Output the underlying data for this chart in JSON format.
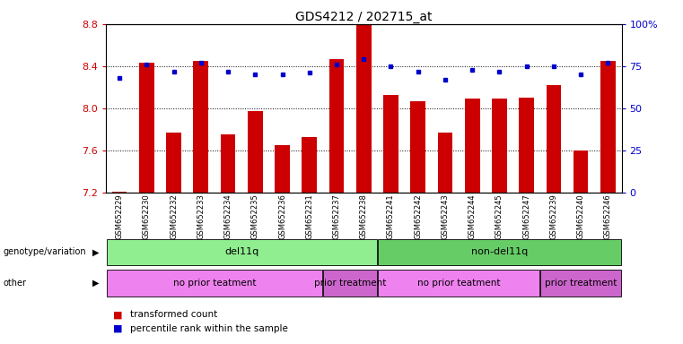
{
  "title": "GDS4212 / 202715_at",
  "samples": [
    "GSM652229",
    "GSM652230",
    "GSM652232",
    "GSM652233",
    "GSM652234",
    "GSM652235",
    "GSM652236",
    "GSM652231",
    "GSM652237",
    "GSM652238",
    "GSM652241",
    "GSM652242",
    "GSM652243",
    "GSM652244",
    "GSM652245",
    "GSM652247",
    "GSM652239",
    "GSM652240",
    "GSM652246"
  ],
  "bar_values": [
    7.21,
    8.43,
    7.77,
    8.45,
    7.75,
    7.97,
    7.65,
    7.73,
    8.47,
    8.83,
    8.13,
    8.07,
    7.77,
    8.09,
    8.09,
    8.1,
    8.22,
    7.6,
    8.45
  ],
  "percentile_values": [
    68,
    76,
    72,
    77,
    72,
    70,
    70,
    71,
    76,
    79,
    75,
    72,
    67,
    73,
    72,
    75,
    75,
    70,
    77
  ],
  "ylim_left": [
    7.2,
    8.8
  ],
  "ylim_right": [
    0,
    100
  ],
  "yticks_left": [
    7.2,
    7.6,
    8.0,
    8.4,
    8.8
  ],
  "yticks_right": [
    0,
    25,
    50,
    75,
    100
  ],
  "bar_color": "#CC0000",
  "dot_color": "#0000CC",
  "genotype_groups": [
    {
      "label": "del11q",
      "start": 0,
      "end": 10,
      "color": "#90EE90"
    },
    {
      "label": "non-del11q",
      "start": 10,
      "end": 19,
      "color": "#66CC66"
    }
  ],
  "other_groups": [
    {
      "label": "no prior teatment",
      "start": 0,
      "end": 8,
      "color": "#EE82EE"
    },
    {
      "label": "prior treatment",
      "start": 8,
      "end": 10,
      "color": "#CC66CC"
    },
    {
      "label": "no prior teatment",
      "start": 10,
      "end": 16,
      "color": "#EE82EE"
    },
    {
      "label": "prior treatment",
      "start": 16,
      "end": 19,
      "color": "#CC66CC"
    }
  ],
  "row_labels": [
    "genotype/variation",
    "other"
  ],
  "legend_items": [
    {
      "label": "transformed count",
      "color": "#CC0000"
    },
    {
      "label": "percentile rank within the sample",
      "color": "#0000CC"
    }
  ],
  "background_color": "#ffffff"
}
